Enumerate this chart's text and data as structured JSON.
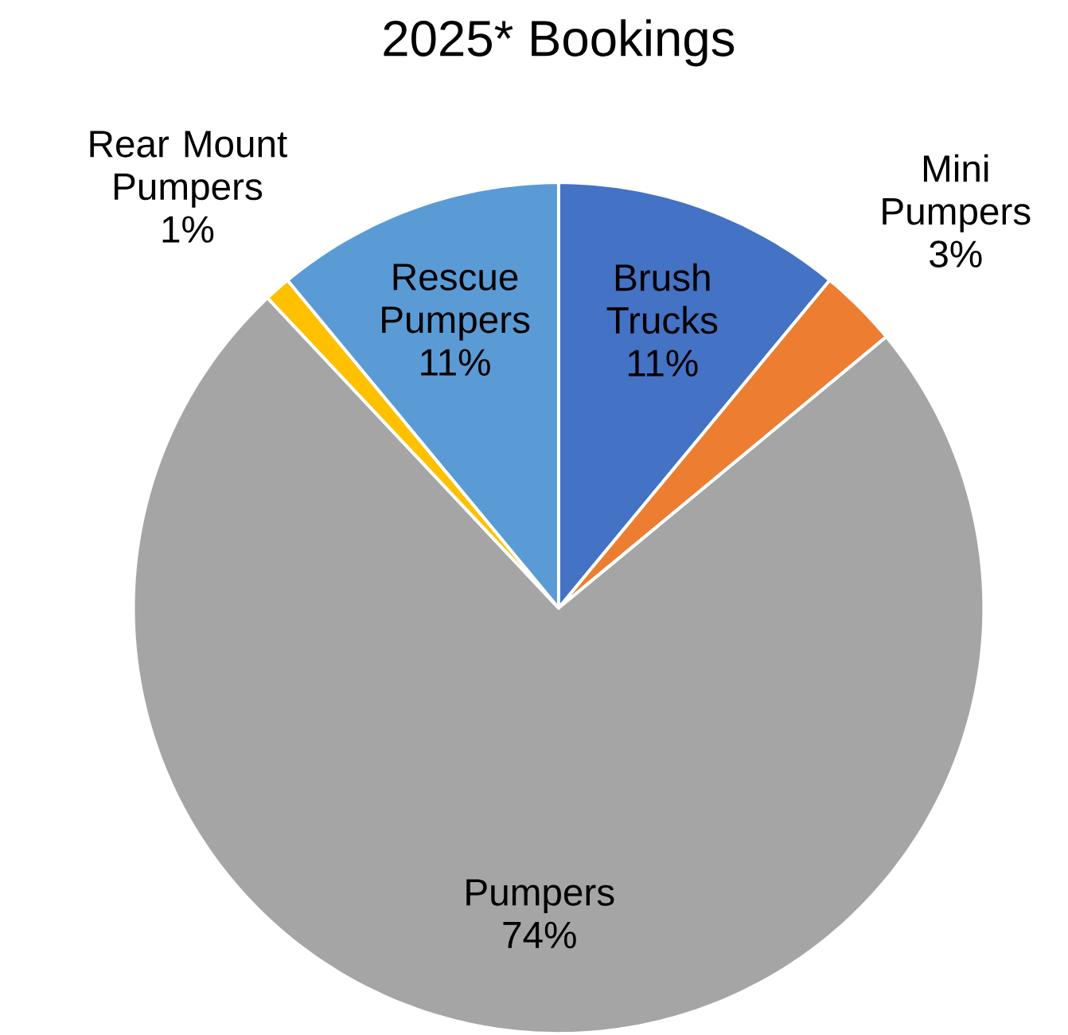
{
  "chart_data": {
    "type": "pie",
    "title": "2025* Bookings",
    "categories": [
      "Brush Trucks",
      "Mini Pumpers",
      "Pumpers",
      "Rear Mount Pumpers",
      "Rescue Pumpers"
    ],
    "values": [
      11,
      3,
      74,
      1,
      11
    ],
    "value_labels": [
      "11%",
      "3%",
      "74%",
      "1%",
      "11%"
    ],
    "colors": [
      "#4472c4",
      "#ed7d31",
      "#a5a5a5",
      "#ffc000",
      "#5b9bd5"
    ]
  }
}
